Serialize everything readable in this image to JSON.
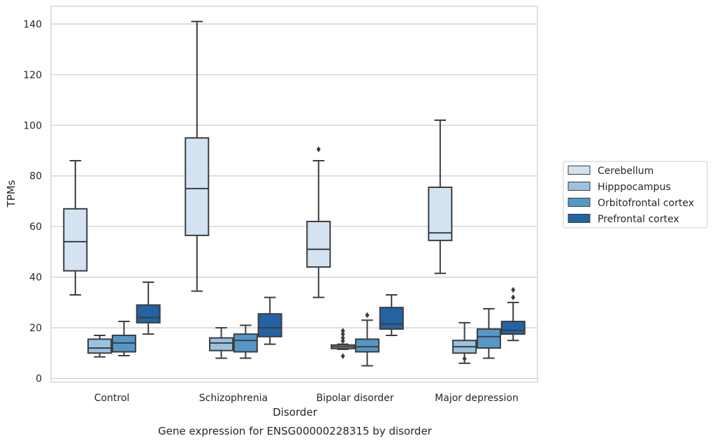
{
  "chart_data": {
    "type": "box",
    "title": "",
    "caption": "Gene expression for ENSG00000228315 by disorder",
    "xlabel": "Disorder",
    "ylabel": "TPMs",
    "ylim": [
      -1.5,
      147
    ],
    "yticks": [
      0,
      20,
      40,
      60,
      80,
      100,
      120,
      140
    ],
    "grid": "y",
    "legend_position": "right",
    "categories": [
      "Control",
      "Schizophrenia",
      "Bipolar disorder",
      "Major depression"
    ],
    "series": [
      {
        "name": "Cerebellum",
        "color": "#d3e3f2",
        "boxes": [
          {
            "whisker_low": 33,
            "q1": 42.5,
            "median": 54,
            "q3": 67,
            "whisker_high": 86,
            "outliers": []
          },
          {
            "whisker_low": 34.5,
            "q1": 56.5,
            "median": 75,
            "q3": 95,
            "whisker_high": 141,
            "outliers": []
          },
          {
            "whisker_low": 32,
            "q1": 44,
            "median": 51,
            "q3": 62,
            "whisker_high": 86,
            "outliers": [
              90.5
            ]
          },
          {
            "whisker_low": 41.5,
            "q1": 54.5,
            "median": 57.5,
            "q3": 75.5,
            "whisker_high": 102,
            "outliers": []
          }
        ]
      },
      {
        "name": "Hipppocampus",
        "color": "#9ac3df",
        "boxes": [
          {
            "whisker_low": 8.5,
            "q1": 10,
            "median": 12,
            "q3": 15.5,
            "whisker_high": 17,
            "outliers": []
          },
          {
            "whisker_low": 8,
            "q1": 11,
            "median": 14,
            "q3": 16,
            "whisker_high": 20,
            "outliers": []
          },
          {
            "whisker_low": 11.5,
            "q1": 11.8,
            "median": 12.5,
            "q3": 13.2,
            "whisker_high": 13.5,
            "outliers": [
              14.8,
              8.8,
              16,
              17.5,
              18.8
            ]
          },
          {
            "whisker_low": 6,
            "q1": 10,
            "median": 12.5,
            "q3": 15,
            "whisker_high": 22,
            "outliers": [
              7.8
            ]
          }
        ]
      },
      {
        "name": "Orbitofrontal cortex",
        "color": "#5598c8",
        "boxes": [
          {
            "whisker_low": 9,
            "q1": 10.5,
            "median": 14,
            "q3": 17,
            "whisker_high": 22.5,
            "outliers": []
          },
          {
            "whisker_low": 8,
            "q1": 10.5,
            "median": 15,
            "q3": 17.5,
            "whisker_high": 21,
            "outliers": []
          },
          {
            "whisker_low": 5,
            "q1": 10.5,
            "median": 12.5,
            "q3": 15.5,
            "whisker_high": 23,
            "outliers": [
              25
            ]
          },
          {
            "whisker_low": 8,
            "q1": 12,
            "median": 16.5,
            "q3": 19.5,
            "whisker_high": 27.5,
            "outliers": []
          }
        ]
      },
      {
        "name": "Prefrontal cortex",
        "color": "#2363a5",
        "boxes": [
          {
            "whisker_low": 17.5,
            "q1": 22,
            "median": 24,
            "q3": 29,
            "whisker_high": 38,
            "outliers": []
          },
          {
            "whisker_low": 13.5,
            "q1": 16.5,
            "median": 20,
            "q3": 25.5,
            "whisker_high": 32,
            "outliers": []
          },
          {
            "whisker_low": 17,
            "q1": 19.5,
            "median": 21.5,
            "q3": 28,
            "whisker_high": 33,
            "outliers": []
          },
          {
            "whisker_low": 15,
            "q1": 17.5,
            "median": 19,
            "q3": 22.5,
            "whisker_high": 30,
            "outliers": [
              32,
              35
            ]
          }
        ]
      }
    ]
  }
}
